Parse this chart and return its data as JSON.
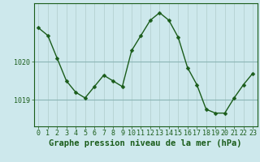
{
  "x": [
    0,
    1,
    2,
    3,
    4,
    5,
    6,
    7,
    8,
    9,
    10,
    11,
    12,
    13,
    14,
    15,
    16,
    17,
    18,
    19,
    20,
    21,
    22,
    23
  ],
  "y": [
    1020.9,
    1020.7,
    1020.1,
    1019.5,
    1019.2,
    1019.05,
    1019.35,
    1019.65,
    1019.5,
    1019.35,
    1020.3,
    1020.7,
    1021.1,
    1021.3,
    1021.1,
    1020.65,
    1019.85,
    1019.4,
    1018.75,
    1018.65,
    1018.65,
    1019.05,
    1019.4,
    1019.7
  ],
  "line_color": "#1a5c1a",
  "marker": "D",
  "marker_size": 2.5,
  "bg_color": "#cde8ec",
  "grid_color_v": "#b0cccc",
  "grid_color_h": "#8ab5b5",
  "axis_color": "#1a5c1a",
  "xlabel": "Graphe pression niveau de la mer (hPa)",
  "xlabel_fontsize": 7.5,
  "tick_fontsize": 6.0,
  "ytick_labels": [
    "1019",
    "1020"
  ],
  "ytick_values": [
    1019.0,
    1020.0
  ],
  "ylim": [
    1018.3,
    1021.55
  ],
  "xlim": [
    -0.5,
    23.5
  ],
  "xtick_values": [
    0,
    1,
    2,
    3,
    4,
    5,
    6,
    7,
    8,
    9,
    10,
    11,
    12,
    13,
    14,
    15,
    16,
    17,
    18,
    19,
    20,
    21,
    22,
    23
  ]
}
